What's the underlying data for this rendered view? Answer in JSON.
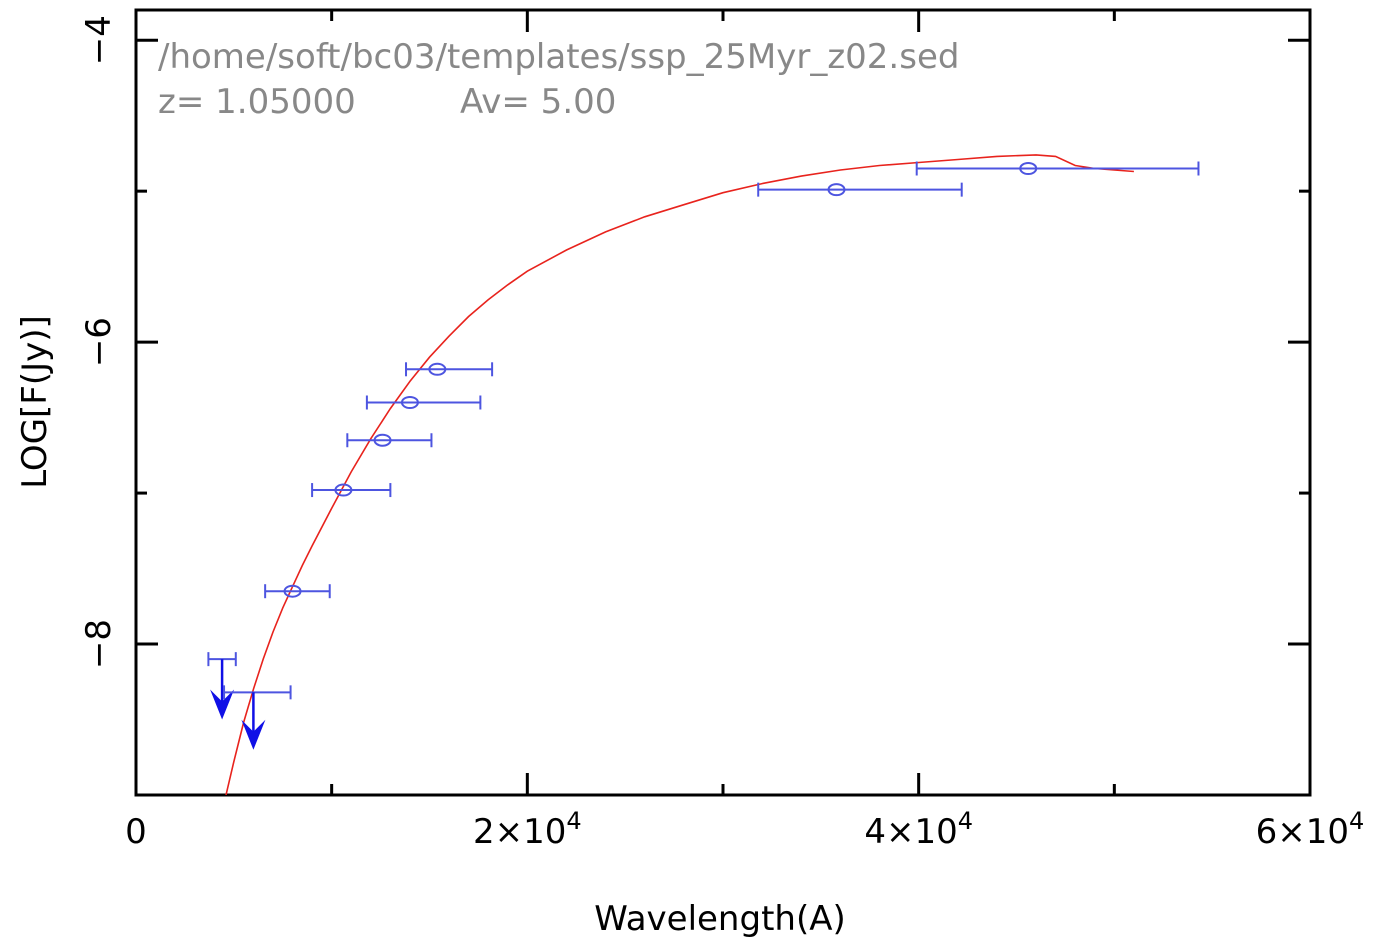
{
  "colors": {
    "model": "#e8231d",
    "data": "#4d55e0",
    "arrow": "#1010e6",
    "annotation": "#888888"
  },
  "annotation": {
    "line1": "/home/soft/bc03/templates/ssp_25Myr_z02.sed",
    "line2_z": "z=  1.05000",
    "line2_av": "Av=  5.00"
  },
  "chart_data": {
    "type": "scatter",
    "xlabel": "Wavelength(A)",
    "ylabel": "LOG[F(Jy)]",
    "xlim": [
      0,
      60000
    ],
    "ylim": [
      -9,
      -3.8
    ],
    "x_ticks": [
      {
        "value": 0,
        "base": "0",
        "exp": ""
      },
      {
        "value": 20000,
        "base": "2×10",
        "exp": "4"
      },
      {
        "value": 40000,
        "base": "4×10",
        "exp": "4"
      },
      {
        "value": 60000,
        "base": "6×10",
        "exp": "4"
      }
    ],
    "y_ticks": [
      {
        "value": -4,
        "label": "−4"
      },
      {
        "value": -6,
        "label": "−6"
      },
      {
        "value": -8,
        "label": "−8"
      }
    ],
    "model_curve": {
      "x": [
        4600,
        5000,
        5500,
        6000,
        6500,
        7000,
        7500,
        8000,
        8500,
        9000,
        10000,
        11000,
        12000,
        13000,
        14000,
        15000,
        16000,
        17000,
        18000,
        19000,
        20000,
        22000,
        24000,
        26000,
        28000,
        30000,
        32000,
        34000,
        36000,
        38000,
        40000,
        42000,
        44000,
        46000,
        47000,
        48000,
        49000,
        50000,
        51000
      ],
      "y": [
        -9.0,
        -8.78,
        -8.52,
        -8.3,
        -8.1,
        -7.92,
        -7.76,
        -7.62,
        -7.48,
        -7.35,
        -7.1,
        -6.86,
        -6.64,
        -6.44,
        -6.26,
        -6.1,
        -5.96,
        -5.83,
        -5.72,
        -5.62,
        -5.53,
        -5.39,
        -5.27,
        -5.17,
        -5.09,
        -5.01,
        -4.95,
        -4.9,
        -4.86,
        -4.83,
        -4.81,
        -4.79,
        -4.77,
        -4.76,
        -4.77,
        -4.83,
        -4.85,
        -4.86,
        -4.87
      ]
    },
    "points": [
      {
        "x": 8000,
        "y": -7.65,
        "xerr_low": 6600,
        "xerr_high": 9900
      },
      {
        "x": 10600,
        "y": -6.98,
        "xerr_low": 9000,
        "xerr_high": 13000
      },
      {
        "x": 12600,
        "y": -6.65,
        "xerr_low": 10800,
        "xerr_high": 15100
      },
      {
        "x": 14000,
        "y": -6.4,
        "xerr_low": 11800,
        "xerr_high": 17600
      },
      {
        "x": 15400,
        "y": -6.18,
        "xerr_low": 13800,
        "xerr_high": 18200
      },
      {
        "x": 35800,
        "y": -4.99,
        "xerr_low": 31800,
        "xerr_high": 42200
      },
      {
        "x": 45600,
        "y": -4.85,
        "xerr_low": 39900,
        "xerr_high": 54300
      }
    ],
    "upper_limits": [
      {
        "x": 4400,
        "y": -8.1,
        "xerr_low": 3700,
        "xerr_high": 5100,
        "arrow_to": -8.5
      },
      {
        "x": 6000,
        "y": -8.32,
        "xerr_low": 4500,
        "xerr_high": 7900,
        "arrow_to": -8.7
      }
    ]
  }
}
